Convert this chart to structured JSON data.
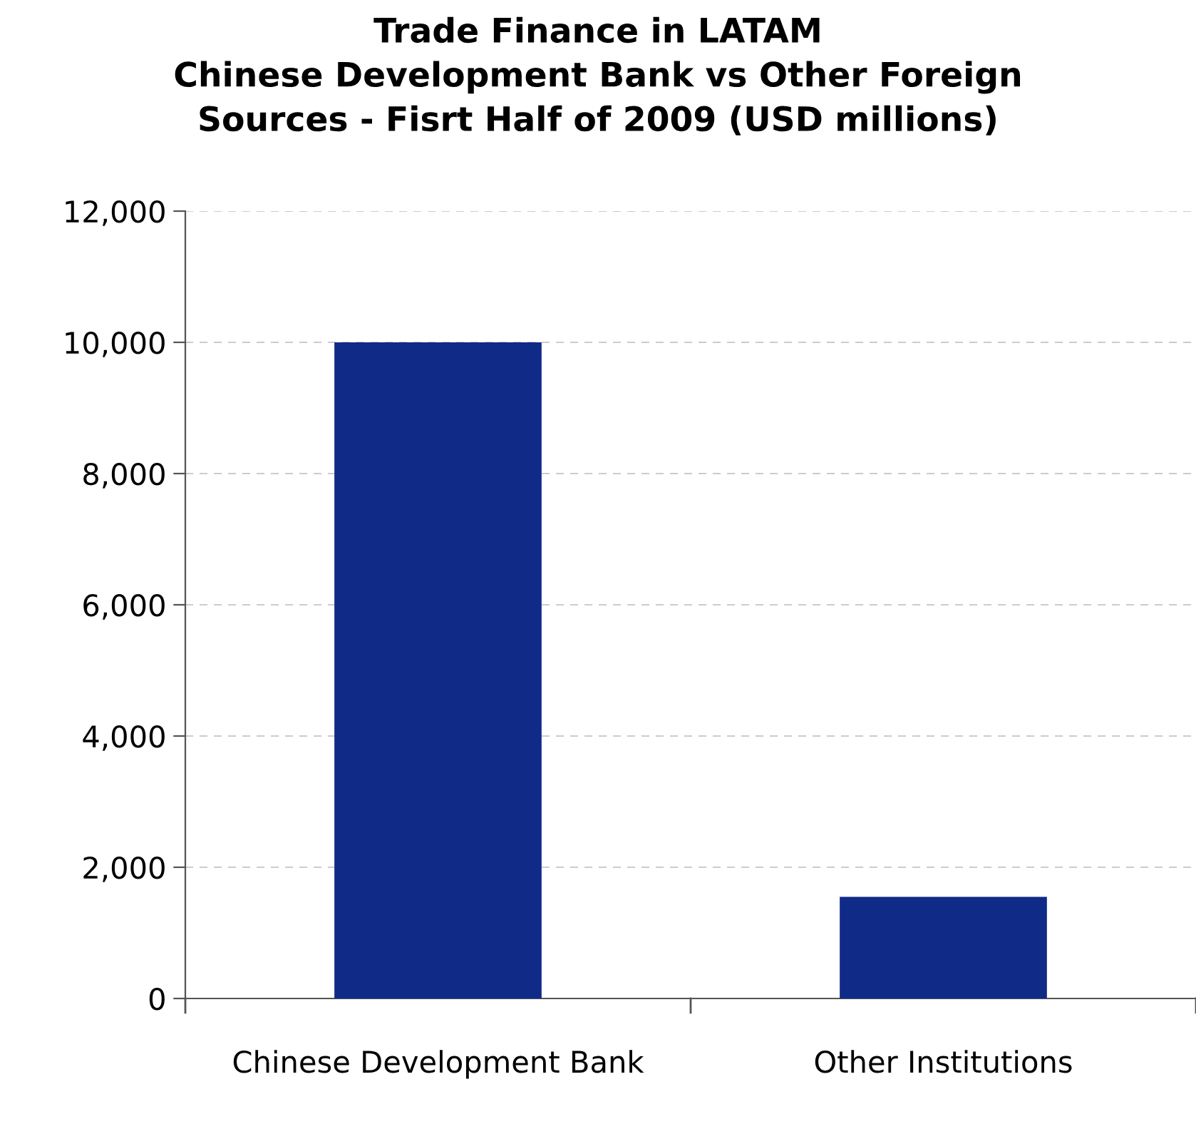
{
  "chart_data": {
    "type": "bar",
    "title": "Trade Finance in LATAM\nChinese Development Bank vs Other Foreign\nSources - Fisrt Half of 2009 (USD millions)",
    "categories": [
      "Chinese Development Bank",
      "Other Institutions"
    ],
    "values": [
      10000,
      1550
    ],
    "color": "#102a87",
    "ylim": [
      0,
      12000
    ],
    "yticks": [
      {
        "value": 0,
        "label": "0"
      },
      {
        "value": 2000,
        "label": "2,000"
      },
      {
        "value": 4000,
        "label": "4,000"
      },
      {
        "value": 6000,
        "label": "6,000"
      },
      {
        "value": 8000,
        "label": "8,000"
      },
      {
        "value": 10000,
        "label": "10,000"
      },
      {
        "value": 12000,
        "label": "12,000"
      }
    ],
    "grid": "y"
  }
}
